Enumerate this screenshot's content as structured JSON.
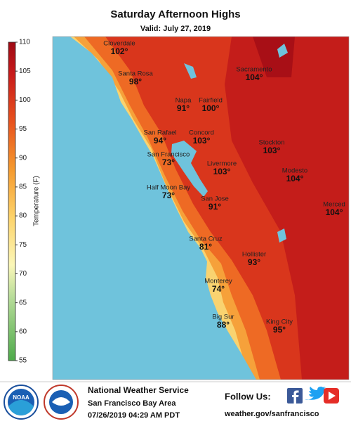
{
  "header": {
    "title": "Saturday Afternoon Highs",
    "subtitle": "Valid: July 27, 2019"
  },
  "colorbar": {
    "label": "Temperature (F)",
    "range": [
      55,
      110
    ],
    "ticks": [
      55,
      60,
      65,
      70,
      75,
      80,
      85,
      90,
      95,
      100,
      105,
      110
    ]
  },
  "cities": [
    {
      "name": "Cloverdale",
      "temp": "102°"
    },
    {
      "name": "Santa Rosa",
      "temp": "98°"
    },
    {
      "name": "Sacramento",
      "temp": "104°"
    },
    {
      "name": "Napa",
      "temp": "91°"
    },
    {
      "name": "Fairfield",
      "temp": "100°"
    },
    {
      "name": "San Rafael",
      "temp": "94°"
    },
    {
      "name": "Concord",
      "temp": "103°"
    },
    {
      "name": "Stockton",
      "temp": "103°"
    },
    {
      "name": "San Francisco",
      "temp": "73°"
    },
    {
      "name": "Livermore",
      "temp": "103°"
    },
    {
      "name": "Modesto",
      "temp": "104°"
    },
    {
      "name": "Half Moon Bay",
      "temp": "73°"
    },
    {
      "name": "San Jose",
      "temp": "91°"
    },
    {
      "name": "Merced",
      "temp": "104°"
    },
    {
      "name": "Santa Cruz",
      "temp": "81°"
    },
    {
      "name": "Hollister",
      "temp": "93°"
    },
    {
      "name": "Monterey",
      "temp": "74°"
    },
    {
      "name": "Big Sur",
      "temp": "88°"
    },
    {
      "name": "King City",
      "temp": "95°"
    }
  ],
  "footer": {
    "logo": "NOAA",
    "agency": "National Weather Service",
    "office": "San Francisco Bay Area",
    "issued": "07/26/2019 04:29 AM PDT",
    "follow": "Follow Us:",
    "url": "weather.gov/sanfrancisco"
  }
}
